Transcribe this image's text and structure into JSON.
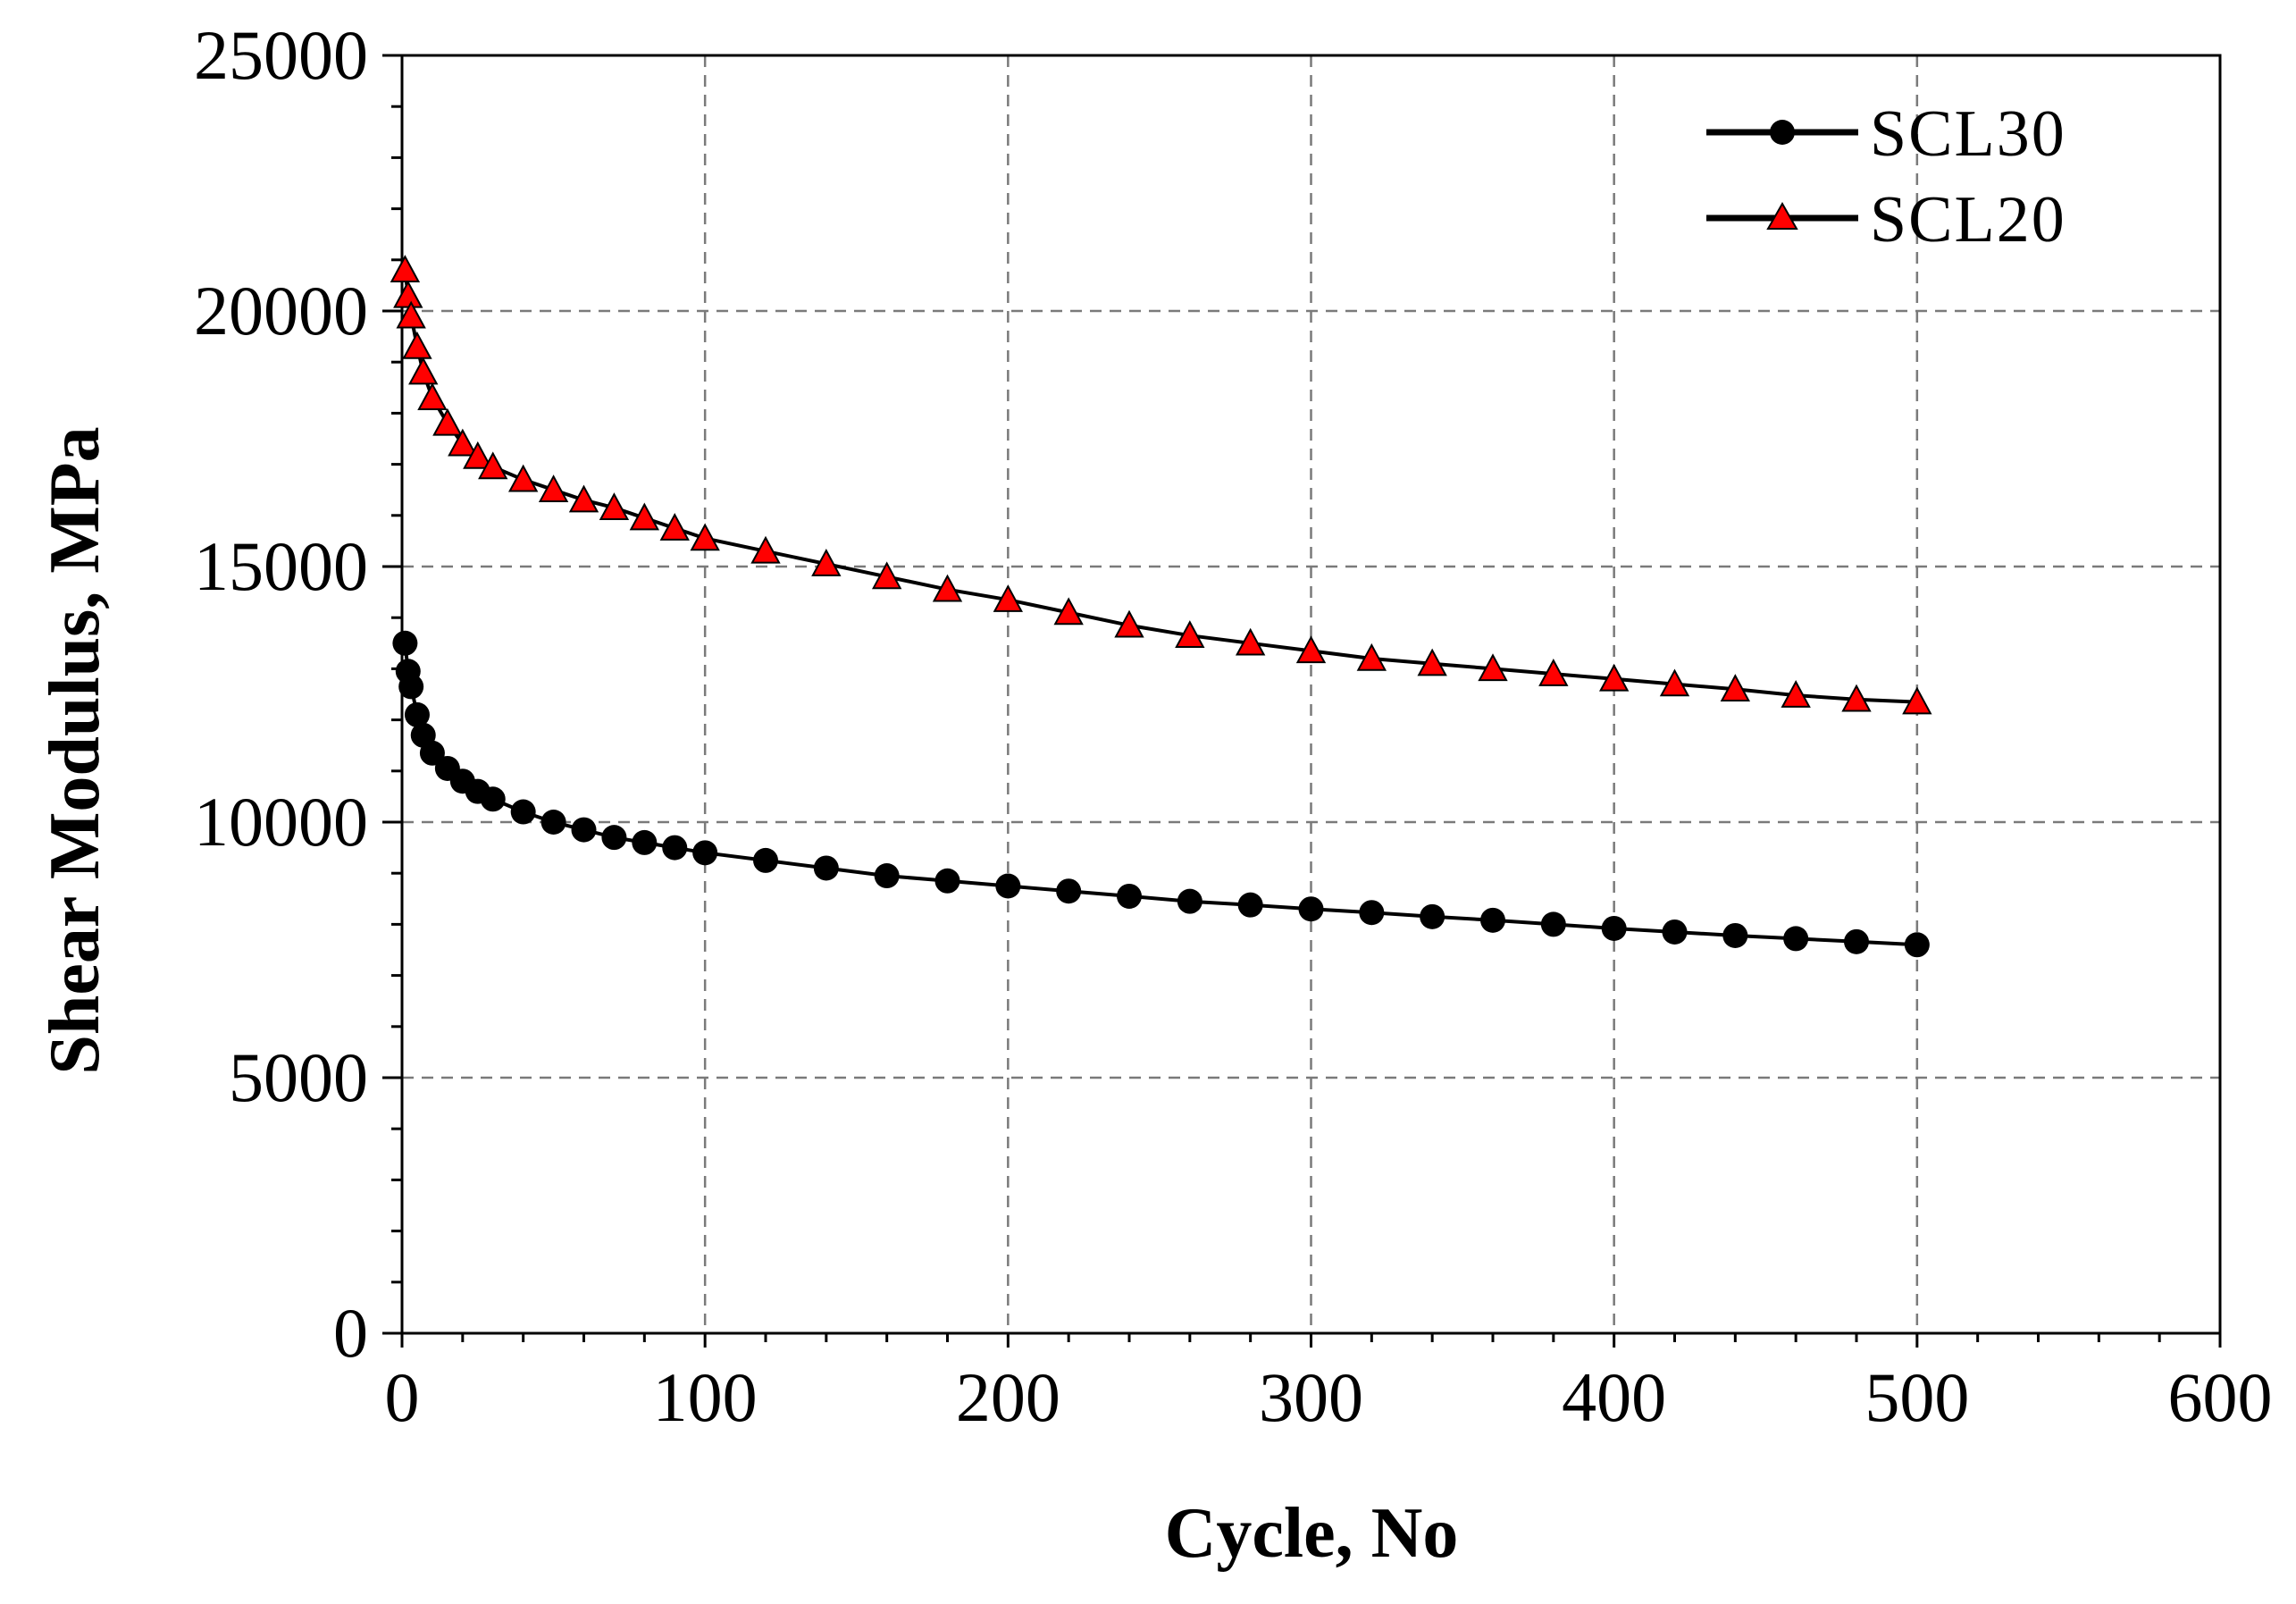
{
  "chart_data": {
    "type": "scatter",
    "title": "",
    "xlabel": "Cycle, No",
    "ylabel": "Shear Modulus, MPa",
    "xlim": [
      0,
      600
    ],
    "ylim": [
      0,
      25000
    ],
    "xticks": [
      "0",
      "100",
      "200",
      "300",
      "400",
      "500",
      "600"
    ],
    "yticks": [
      "0",
      "5000",
      "10000",
      "15000",
      "20000",
      "25000"
    ],
    "grid": true,
    "legend_position": "top-right",
    "series": [
      {
        "name": "SCL30",
        "marker": "circle",
        "color": "#000000",
        "line_color": "#000000",
        "x": [
          1,
          2,
          3,
          5,
          7,
          10,
          15,
          20,
          25,
          30,
          40,
          50,
          60,
          70,
          80,
          90,
          100,
          120,
          140,
          160,
          180,
          200,
          220,
          240,
          260,
          280,
          300,
          320,
          340,
          360,
          380,
          400,
          420,
          440,
          460,
          480,
          500
        ],
        "values": [
          13500,
          12950,
          12650,
          12100,
          11700,
          11350,
          11050,
          10800,
          10600,
          10450,
          10200,
          10000,
          9850,
          9700,
          9600,
          9500,
          9400,
          9250,
          9100,
          8950,
          8850,
          8750,
          8650,
          8550,
          8450,
          8380,
          8300,
          8230,
          8150,
          8080,
          8000,
          7920,
          7850,
          7780,
          7720,
          7660,
          7600
        ]
      },
      {
        "name": "SCL20",
        "marker": "triangle",
        "color": "#ff0000",
        "edge_color": "#000000",
        "line_color": "#000000",
        "x": [
          1,
          2,
          3,
          5,
          7,
          10,
          15,
          20,
          25,
          30,
          40,
          50,
          60,
          70,
          80,
          90,
          100,
          120,
          140,
          160,
          180,
          200,
          220,
          240,
          260,
          280,
          300,
          320,
          340,
          360,
          380,
          400,
          420,
          440,
          460,
          480,
          500
        ],
        "values": [
          20800,
          20300,
          19900,
          19300,
          18800,
          18300,
          17800,
          17400,
          17150,
          16950,
          16700,
          16500,
          16300,
          16150,
          15950,
          15750,
          15550,
          15300,
          15050,
          14800,
          14550,
          14350,
          14100,
          13850,
          13650,
          13500,
          13350,
          13200,
          13100,
          13000,
          12900,
          12800,
          12700,
          12600,
          12480,
          12400,
          12350
        ]
      }
    ]
  }
}
